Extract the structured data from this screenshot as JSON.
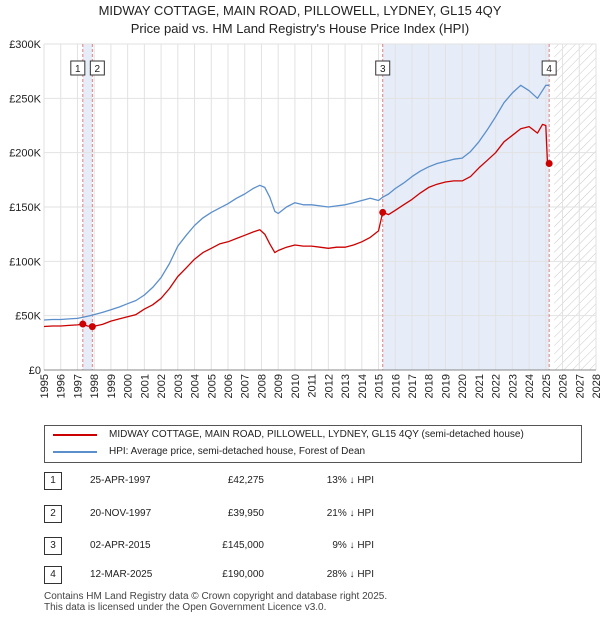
{
  "title": {
    "line1": "MIDWAY COTTAGE, MAIN ROAD, PILLOWELL, LYDNEY, GL15 4QY",
    "line2": "Price paid vs. HM Land Registry's House Price Index (HPI)"
  },
  "chart_data": {
    "type": "line",
    "xlim": [
      1995,
      2028
    ],
    "ylim": [
      0,
      300000
    ],
    "y_ticks": [
      0,
      50000,
      100000,
      150000,
      200000,
      250000,
      300000
    ],
    "y_tick_labels": [
      "£0",
      "£50K",
      "£100K",
      "£150K",
      "£200K",
      "£250K",
      "£300K"
    ],
    "x_ticks": [
      1995,
      1996,
      1997,
      1998,
      1999,
      2000,
      2001,
      2002,
      2003,
      2004,
      2005,
      2006,
      2007,
      2008,
      2009,
      2010,
      2011,
      2012,
      2013,
      2014,
      2015,
      2016,
      2017,
      2018,
      2019,
      2020,
      2021,
      2022,
      2023,
      2024,
      2025,
      2026,
      2027,
      2028
    ],
    "x_tick_labels": [
      "1995",
      "1996",
      "1997",
      "1998",
      "1999",
      "2000",
      "2001",
      "2002",
      "2003",
      "2004",
      "2005",
      "2006",
      "2007",
      "2008",
      "2009",
      "2010",
      "2011",
      "2012",
      "2013",
      "2014",
      "2015",
      "2016",
      "2017",
      "2018",
      "2019",
      "2020",
      "2021",
      "2022",
      "2023",
      "2024",
      "2025",
      "2026",
      "2027",
      "2028"
    ],
    "grid": true,
    "hatch_after": 2025.5,
    "highlight_ranges": [
      [
        1997.32,
        1997.89
      ],
      [
        2015.25,
        2025.2
      ]
    ],
    "colors": {
      "price": "#cc0000",
      "hpi": "#5b8fcb",
      "marker": "#cc0000",
      "vline": "#e08080",
      "shade": "#e6ecf8"
    },
    "series": [
      {
        "name": "MIDWAY COTTAGE, MAIN ROAD, PILLOWELL, LYDNEY, GL15 4QY (semi-detached house)",
        "x": [
          1995.0,
          1995.5,
          1996.0,
          1996.5,
          1997.0,
          1997.32,
          1997.6,
          1997.89,
          1998.5,
          1999.0,
          1999.5,
          2000.0,
          2000.5,
          2001.0,
          2001.5,
          2002.0,
          2002.5,
          2003.0,
          2003.5,
          2004.0,
          2004.5,
          2005.0,
          2005.5,
          2006.0,
          2006.5,
          2007.0,
          2007.5,
          2007.9,
          2008.2,
          2008.5,
          2008.8,
          2009.0,
          2009.5,
          2010.0,
          2010.5,
          2011.0,
          2011.5,
          2012.0,
          2012.5,
          2013.0,
          2013.5,
          2014.0,
          2014.5,
          2015.0,
          2015.25,
          2015.6,
          2016.0,
          2016.5,
          2017.0,
          2017.5,
          2018.0,
          2018.5,
          2019.0,
          2019.5,
          2020.0,
          2020.5,
          2021.0,
          2021.5,
          2022.0,
          2022.5,
          2023.0,
          2023.5,
          2024.0,
          2024.5,
          2024.8,
          2025.0,
          2025.1,
          2025.2
        ],
        "values": [
          40000,
          40500,
          40500,
          41000,
          41500,
          42275,
          40500,
          39950,
          42000,
          45000,
          47000,
          49000,
          51000,
          56000,
          60000,
          66000,
          75000,
          86000,
          94000,
          102000,
          108000,
          112000,
          116000,
          118000,
          121000,
          124000,
          127000,
          129000,
          125000,
          116000,
          108000,
          110000,
          113000,
          115000,
          114000,
          114000,
          113000,
          112000,
          113000,
          113000,
          115000,
          118000,
          122000,
          128000,
          145000,
          143000,
          147000,
          152000,
          157000,
          163000,
          168000,
          171000,
          173000,
          174000,
          174000,
          178000,
          186000,
          193000,
          200000,
          210000,
          216000,
          222000,
          224000,
          218000,
          226000,
          225000,
          190000,
          190000
        ]
      },
      {
        "name": "HPI: Average price, semi-detached house, Forest of Dean",
        "x": [
          1995.0,
          1995.5,
          1996.0,
          1996.5,
          1997.0,
          1997.32,
          1997.6,
          1997.89,
          1998.5,
          1999.0,
          1999.5,
          2000.0,
          2000.5,
          2001.0,
          2001.5,
          2002.0,
          2002.5,
          2003.0,
          2003.5,
          2004.0,
          2004.5,
          2005.0,
          2005.5,
          2006.0,
          2006.5,
          2007.0,
          2007.5,
          2007.9,
          2008.2,
          2008.5,
          2008.8,
          2009.0,
          2009.5,
          2010.0,
          2010.5,
          2011.0,
          2011.5,
          2012.0,
          2012.5,
          2013.0,
          2013.5,
          2014.0,
          2014.5,
          2015.0,
          2015.25,
          2015.6,
          2016.0,
          2016.5,
          2017.0,
          2017.5,
          2018.0,
          2018.5,
          2019.0,
          2019.5,
          2020.0,
          2020.5,
          2021.0,
          2021.5,
          2022.0,
          2022.5,
          2023.0,
          2023.5,
          2024.0,
          2024.5,
          2025.0,
          2025.2
        ],
        "values": [
          46000,
          46500,
          46500,
          47000,
          47500,
          48500,
          49500,
          50500,
          53000,
          55500,
          58000,
          61000,
          64000,
          69000,
          76000,
          85000,
          98000,
          114000,
          124000,
          133000,
          140000,
          145000,
          149000,
          153000,
          158000,
          162000,
          167000,
          170000,
          168000,
          159000,
          146000,
          144000,
          150000,
          154000,
          152000,
          152000,
          151000,
          150000,
          151000,
          152000,
          154000,
          156000,
          158000,
          156000,
          159000,
          162000,
          167000,
          172000,
          178000,
          183000,
          187000,
          190000,
          192000,
          194000,
          195000,
          201000,
          210000,
          221000,
          233000,
          246000,
          255000,
          262000,
          257000,
          250000,
          262000,
          262000
        ]
      }
    ],
    "markers": [
      {
        "label": "1",
        "x": 1997.32,
        "y": 42275
      },
      {
        "label": "2",
        "x": 1997.89,
        "y": 39950
      },
      {
        "label": "3",
        "x": 2015.25,
        "y": 145000
      },
      {
        "label": "4",
        "x": 2025.2,
        "y": 190000
      }
    ]
  },
  "legend": {
    "price_label": "MIDWAY COTTAGE, MAIN ROAD, PILLOWELL, LYDNEY, GL15 4QY (semi-detached house)",
    "hpi_label": "HPI: Average price, semi-detached house, Forest of Dean"
  },
  "transactions": [
    {
      "num": "1",
      "date": "25-APR-1997",
      "price": "£42,275",
      "pct": "13% ↓ HPI"
    },
    {
      "num": "2",
      "date": "20-NOV-1997",
      "price": "£39,950",
      "pct": "21% ↓ HPI"
    },
    {
      "num": "3",
      "date": "02-APR-2015",
      "price": "£145,000",
      "pct": "9% ↓ HPI"
    },
    {
      "num": "4",
      "date": "12-MAR-2025",
      "price": "£190,000",
      "pct": "28% ↓ HPI"
    }
  ],
  "footer": {
    "line1": "Contains HM Land Registry data © Crown copyright and database right 2025.",
    "line2": "This data is licensed under the Open Government Licence v3.0."
  }
}
